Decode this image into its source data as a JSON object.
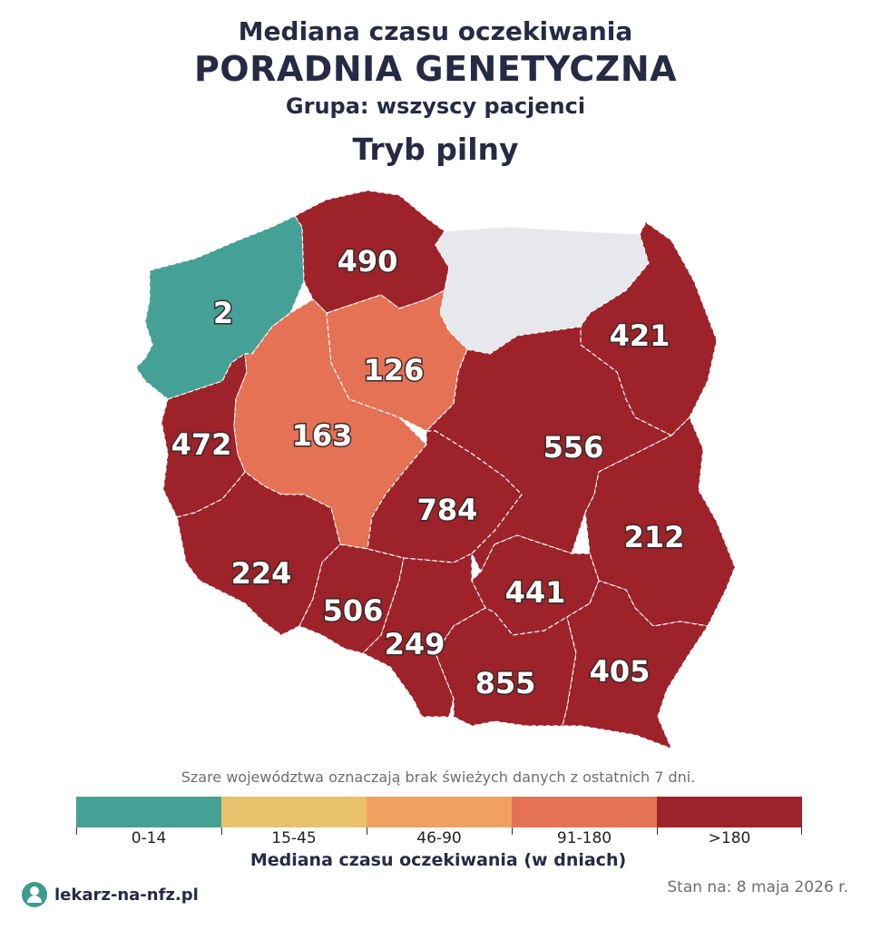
{
  "header": {
    "line1": "Mediana czasu oczekiwania",
    "line2": "PORADNIA GENETYCZNA",
    "line3": "Grupa: wszyscy pacjenci",
    "line4": "Tryb pilny"
  },
  "regions": [
    {
      "id": "zachodniopomorskie",
      "value": "2",
      "color": "#45a196"
    },
    {
      "id": "pomorskie",
      "value": "490",
      "color": "#9d2229"
    },
    {
      "id": "warminsko-mazurskie",
      "value": "",
      "color": "#e6e8eb"
    },
    {
      "id": "podlaskie",
      "value": "421",
      "color": "#9d2229"
    },
    {
      "id": "lubuskie",
      "value": "472",
      "color": "#9d2229"
    },
    {
      "id": "wielkopolskie",
      "value": "163",
      "color": "#e57255"
    },
    {
      "id": "kujawsko-pomorskie",
      "value": "126",
      "color": "#e57255"
    },
    {
      "id": "mazowieckie",
      "value": "556",
      "color": "#9d2229"
    },
    {
      "id": "lodzkie",
      "value": "784",
      "color": "#9d2229"
    },
    {
      "id": "lubelskie",
      "value": "212",
      "color": "#9d2229"
    },
    {
      "id": "dolnoslaskie",
      "value": "224",
      "color": "#9d2229"
    },
    {
      "id": "opolskie",
      "value": "506",
      "color": "#9d2229"
    },
    {
      "id": "slaskie",
      "value": "249",
      "color": "#9d2229"
    },
    {
      "id": "swietokrzyskie",
      "value": "441",
      "color": "#9d2229"
    },
    {
      "id": "malopolskie",
      "value": "855",
      "color": "#9d2229"
    },
    {
      "id": "podkarpackie",
      "value": "405",
      "color": "#9d2229"
    }
  ],
  "note": "Szare województwa oznaczają brak świeżych danych z ostatnich 7 dni.",
  "legend": {
    "items": [
      {
        "label": "0-14",
        "color": "#45a196"
      },
      {
        "label": "15-45",
        "color": "#e8c26a"
      },
      {
        "label": "46-90",
        "color": "#f0a060"
      },
      {
        "label": "91-180",
        "color": "#e57255"
      },
      {
        "label": ">180",
        "color": "#9d2229"
      }
    ],
    "title": "Mediana czasu oczekiwania (w dniach)"
  },
  "footer": {
    "brand": "lekarz-na-nfz.pl",
    "date": "Stan na: 8 maja 2026 r."
  }
}
